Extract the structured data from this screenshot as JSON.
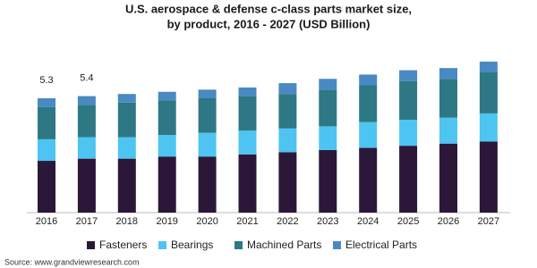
{
  "chart_data": {
    "type": "stacked_bar",
    "title": "U.S. aerospace & defense c-class parts market size,",
    "subtitle": "by product, 2016 - 2027 (USD Billion)",
    "categories": [
      "2016",
      "2017",
      "2018",
      "2019",
      "2020",
      "2021",
      "2022",
      "2023",
      "2024",
      "2025",
      "2026",
      "2027"
    ],
    "series": [
      {
        "name": "Fasteners",
        "color": "#2b1838",
        "values": [
          2.4,
          2.5,
          2.5,
          2.6,
          2.6,
          2.7,
          2.8,
          2.9,
          3.0,
          3.1,
          3.2,
          3.3
        ]
      },
      {
        "name": "Bearings",
        "color": "#4ec4f2",
        "values": [
          1.0,
          1.0,
          1.0,
          1.0,
          1.1,
          1.1,
          1.1,
          1.1,
          1.2,
          1.2,
          1.2,
          1.3
        ]
      },
      {
        "name": "Machined Parts",
        "color": "#2d7884",
        "values": [
          1.5,
          1.5,
          1.6,
          1.6,
          1.6,
          1.6,
          1.6,
          1.7,
          1.7,
          1.8,
          1.8,
          1.9
        ]
      },
      {
        "name": "Electrical Parts",
        "color": "#4a89c4",
        "values": [
          0.4,
          0.4,
          0.4,
          0.4,
          0.4,
          0.4,
          0.5,
          0.5,
          0.5,
          0.5,
          0.5,
          0.5
        ]
      }
    ],
    "annotations": [
      {
        "category": "2016",
        "text": "5.3"
      },
      {
        "category": "2017",
        "text": "5.4"
      }
    ],
    "legend": "bottom",
    "source": "Source: www.grandviewresearch.com"
  }
}
